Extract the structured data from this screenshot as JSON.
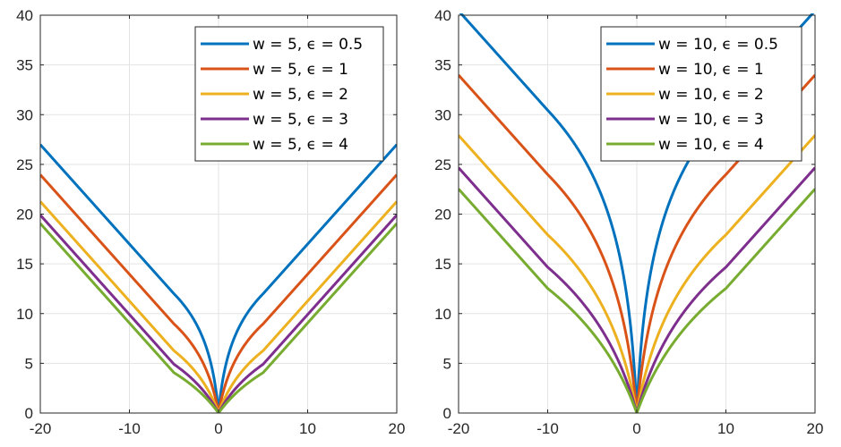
{
  "chart_data": [
    {
      "type": "line",
      "title": "",
      "xlabel": "",
      "ylabel": "",
      "xlim": [
        -20,
        20
      ],
      "ylim": [
        0,
        40
      ],
      "xticks": [
        -20,
        -10,
        0,
        10,
        20
      ],
      "yticks": [
        0,
        5,
        10,
        15,
        20,
        25,
        30,
        35,
        40
      ],
      "grid": true,
      "legend_position": "top-right",
      "w": 5,
      "series": [
        {
          "name": "w = 5, ϵ = 0.5",
          "epsilon": 0.5,
          "color": "#0072BD"
        },
        {
          "name": "w = 5, ϵ = 1",
          "epsilon": 1,
          "color": "#D95319"
        },
        {
          "name": "w = 5, ϵ = 2",
          "epsilon": 2,
          "color": "#EDB120"
        },
        {
          "name": "w = 5, ϵ = 3",
          "epsilon": 3,
          "color": "#7E2F8E"
        },
        {
          "name": "w = 5, ϵ = 4",
          "epsilon": 4,
          "color": "#77AC30"
        }
      ]
    },
    {
      "type": "line",
      "title": "",
      "xlabel": "",
      "ylabel": "",
      "xlim": [
        -20,
        20
      ],
      "ylim": [
        0,
        40
      ],
      "xticks": [
        -20,
        -10,
        0,
        10,
        20
      ],
      "yticks": [
        0,
        5,
        10,
        15,
        20,
        25,
        30,
        35,
        40
      ],
      "grid": true,
      "legend_position": "top-right",
      "w": 10,
      "series": [
        {
          "name": "w = 10, ϵ = 0.5",
          "epsilon": 0.5,
          "color": "#0072BD"
        },
        {
          "name": "w = 10, ϵ = 1",
          "epsilon": 1,
          "color": "#D95319"
        },
        {
          "name": "w = 10, ϵ = 2",
          "epsilon": 2,
          "color": "#EDB120"
        },
        {
          "name": "w = 10, ϵ = 3",
          "epsilon": 3,
          "color": "#7E2F8E"
        },
        {
          "name": "w = 10, ϵ = 4",
          "epsilon": 4,
          "color": "#77AC30"
        }
      ]
    }
  ]
}
